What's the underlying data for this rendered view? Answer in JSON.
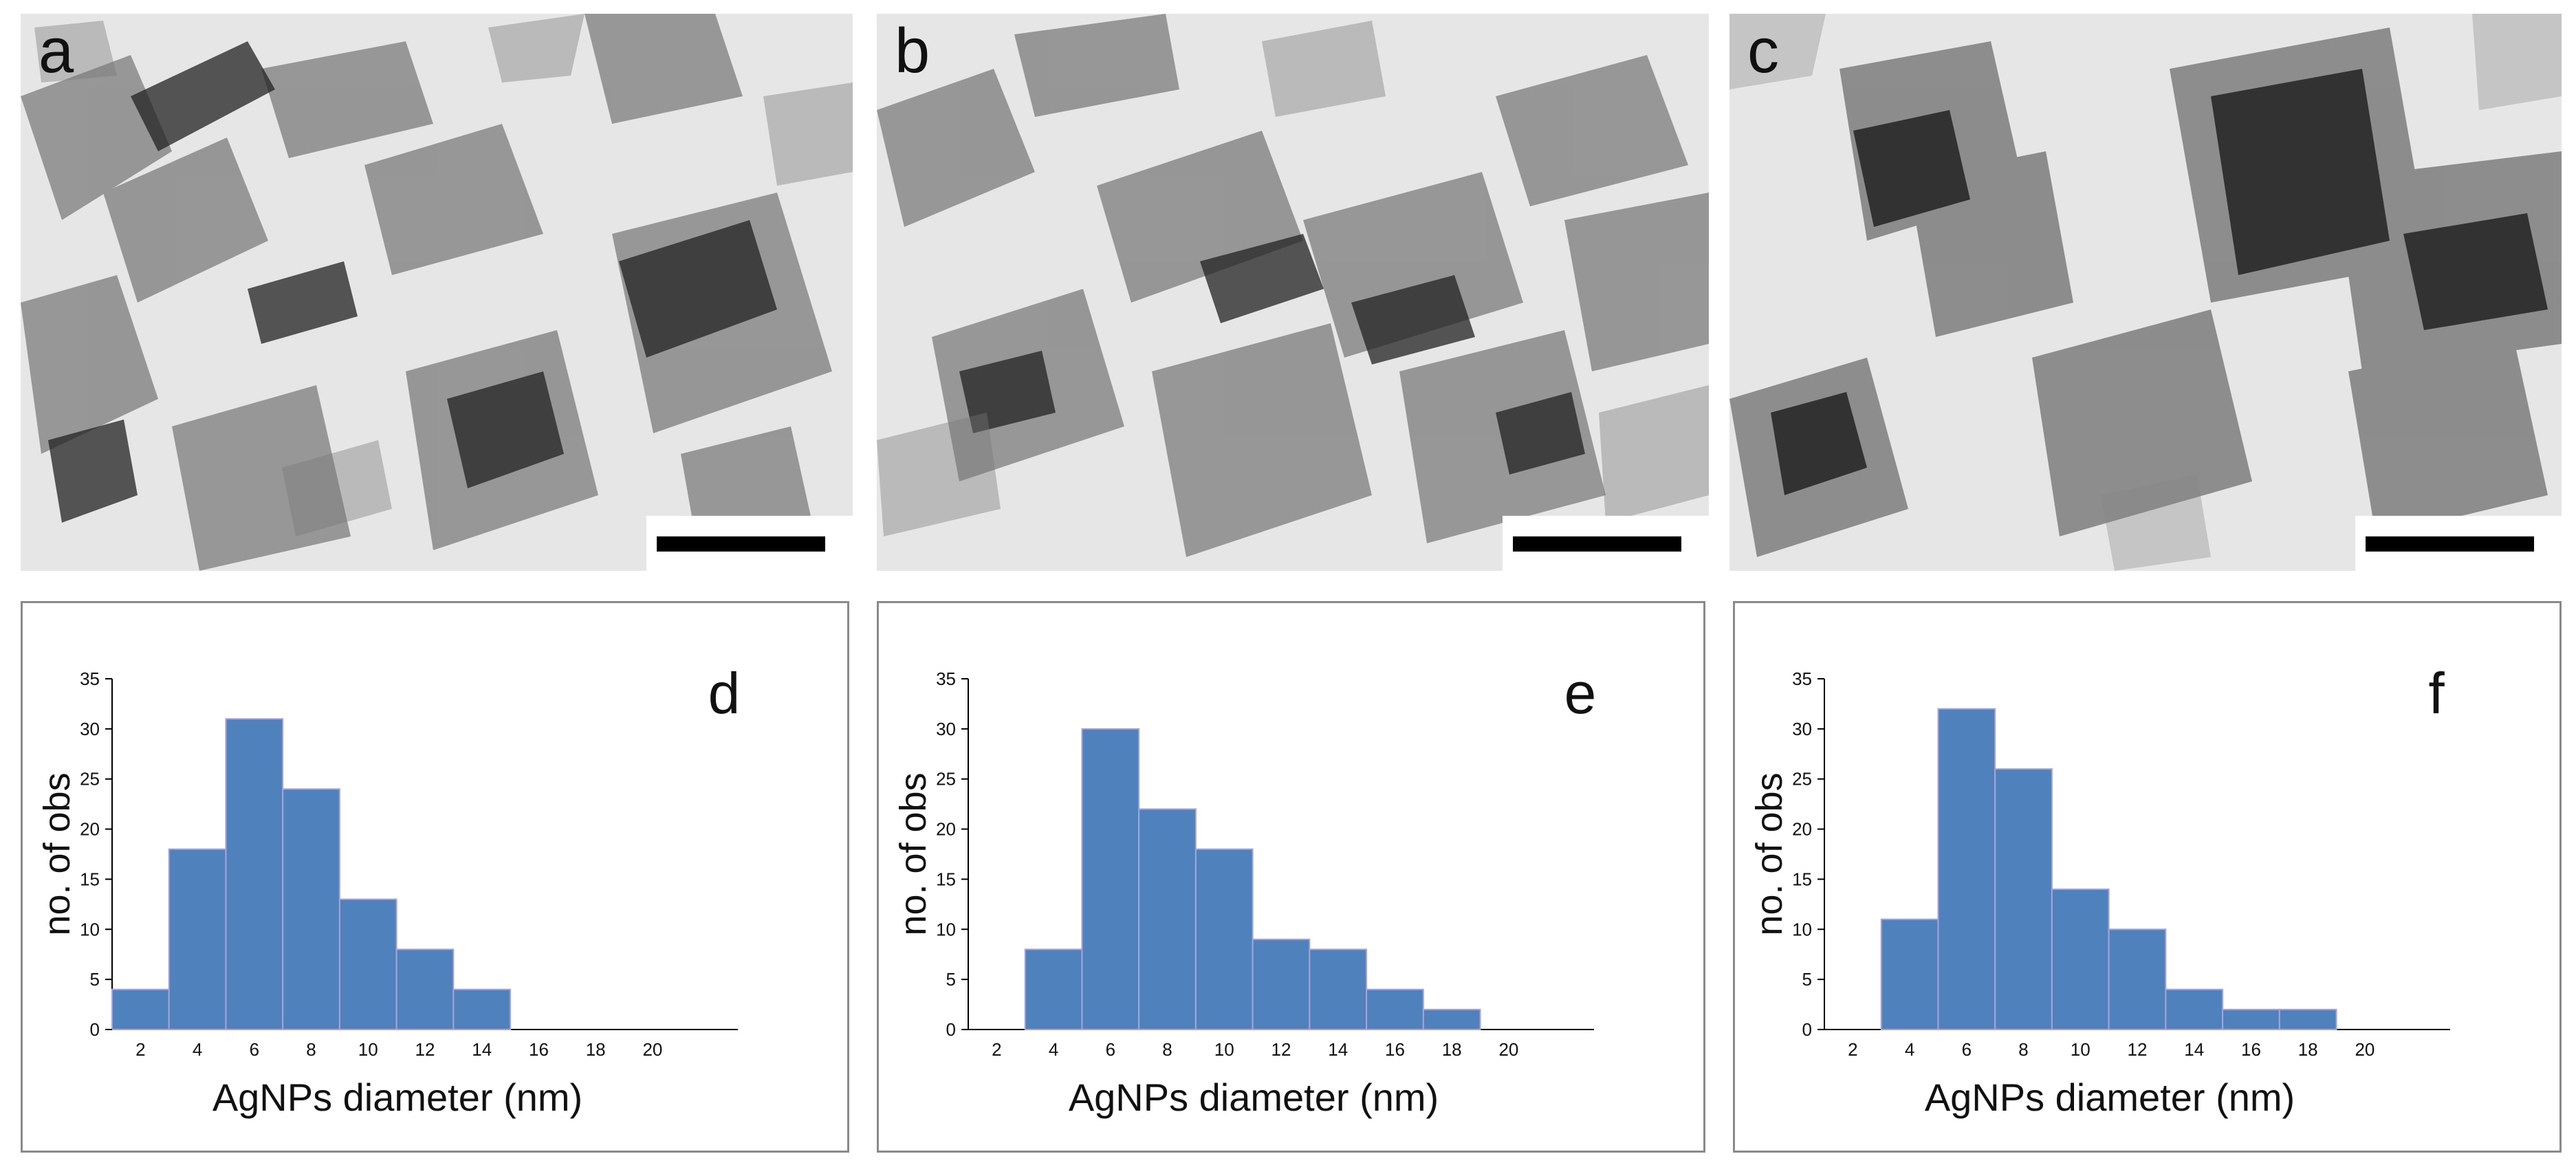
{
  "tem_panels": [
    {
      "letter": "a"
    },
    {
      "letter": "b"
    },
    {
      "letter": "c"
    }
  ],
  "chart_data": [
    {
      "type": "bar",
      "panel_letter": "d",
      "categories": [
        "2",
        "4",
        "6",
        "8",
        "10",
        "12",
        "14",
        "16",
        "18",
        "20"
      ],
      "values": [
        4,
        18,
        31,
        24,
        13,
        8,
        4,
        0,
        0,
        0
      ],
      "xlabel": "AgNPs diameter (nm)",
      "ylabel": "no. of obs",
      "ylim": [
        0,
        35
      ],
      "yticks": [
        "0",
        "5",
        "10",
        "15",
        "20",
        "25",
        "30",
        "35"
      ],
      "grid": false,
      "bar_color": "#4f81bd"
    },
    {
      "type": "bar",
      "panel_letter": "e",
      "categories": [
        "2",
        "4",
        "6",
        "8",
        "10",
        "12",
        "14",
        "16",
        "18",
        "20"
      ],
      "values": [
        0,
        8,
        30,
        22,
        18,
        9,
        8,
        4,
        2,
        0
      ],
      "xlabel": "AgNPs diameter (nm)",
      "ylabel": "no. of obs",
      "ylim": [
        0,
        35
      ],
      "yticks": [
        "0",
        "5",
        "10",
        "15",
        "20",
        "25",
        "30",
        "35"
      ],
      "grid": false,
      "bar_color": "#4f81bd"
    },
    {
      "type": "bar",
      "panel_letter": "f",
      "categories": [
        "2",
        "4",
        "6",
        "8",
        "10",
        "12",
        "14",
        "16",
        "18",
        "20"
      ],
      "values": [
        0,
        11,
        32,
        26,
        14,
        10,
        4,
        2,
        2,
        0
      ],
      "xlabel": "AgNPs diameter (nm)",
      "ylabel": "no. of obs",
      "ylim": [
        0,
        35
      ],
      "yticks": [
        "0",
        "5",
        "10",
        "15",
        "20",
        "25",
        "30",
        "35"
      ],
      "grid": false,
      "bar_color": "#4f81bd"
    }
  ]
}
